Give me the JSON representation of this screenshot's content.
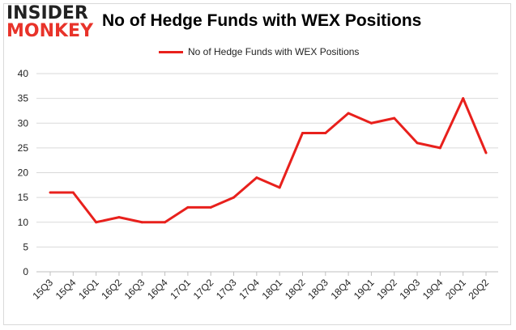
{
  "logo": {
    "top": "INSIDER",
    "bottom": "MONKEY"
  },
  "chart_data": {
    "type": "line",
    "title": "No of Hedge Funds with WEX Positions",
    "categories": [
      "15Q3",
      "15Q4",
      "16Q1",
      "16Q2",
      "16Q3",
      "16Q4",
      "17Q1",
      "17Q2",
      "17Q3",
      "17Q4",
      "18Q1",
      "18Q2",
      "18Q3",
      "18Q4",
      "19Q1",
      "19Q2",
      "19Q3",
      "19Q4",
      "20Q1",
      "20Q2"
    ],
    "series": [
      {
        "name": "No of Hedge Funds with WEX Positions",
        "values": [
          16,
          16,
          10,
          11,
          10,
          10,
          13,
          13,
          15,
          19,
          17,
          28,
          28,
          32,
          30,
          31,
          26,
          25,
          35,
          24
        ],
        "color": "#e8201c"
      }
    ],
    "yticks": [
      0,
      5,
      10,
      15,
      20,
      25,
      30,
      35,
      40
    ],
    "ylim": [
      0,
      40
    ],
    "grid": true,
    "legend_position": "top-center"
  }
}
